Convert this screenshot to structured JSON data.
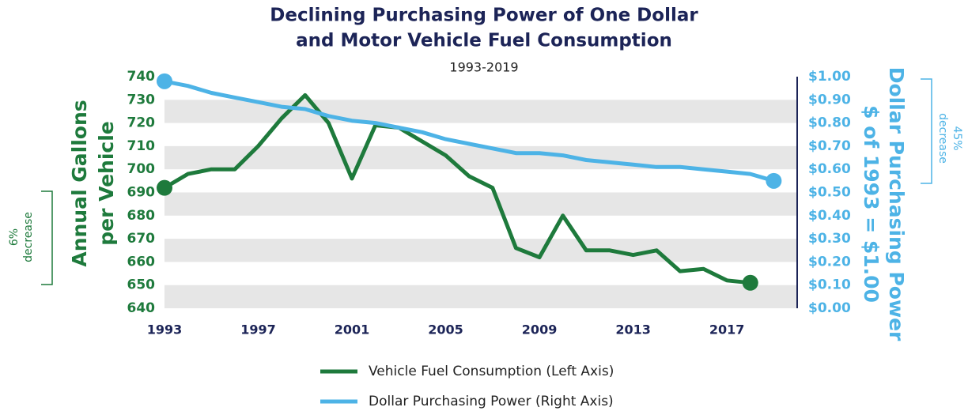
{
  "chart_data": {
    "type": "line",
    "title": [
      "Declining Purchasing Power of One Dollar",
      "and Motor Vehicle Fuel Consumption"
    ],
    "subtitle": "1993-2019",
    "y_label": [
      "Annual Gallons",
      "per Vehicle"
    ],
    "y2_label": [
      "Dollar Purchasing Power",
      "$ of 1993 = $1.00"
    ],
    "annotations": [
      [
        "6%",
        "decrease"
      ],
      [
        "45%",
        "decrease"
      ]
    ],
    "x": [
      1993,
      1994,
      1995,
      1996,
      1997,
      1998,
      1999,
      2000,
      2001,
      2002,
      2003,
      2004,
      2005,
      2006,
      2007,
      2008,
      2009,
      2010,
      2011,
      2012,
      2013,
      2014,
      2015,
      2016,
      2017,
      2018,
      2019
    ],
    "xlim": [
      1993,
      2020
    ],
    "xticks": [
      1993,
      1997,
      2001,
      2005,
      2009,
      2013,
      2017
    ],
    "ylim": [
      640,
      740
    ],
    "yticks": [
      640,
      650,
      660,
      670,
      680,
      690,
      700,
      710,
      720,
      730,
      740
    ],
    "y2lim": [
      0,
      1
    ],
    "y2ticks": [
      {
        "value": 0,
        "label": "$0.00"
      },
      {
        "value": 0.1,
        "label": "$0.10"
      },
      {
        "value": 0.2,
        "label": "$0.20"
      },
      {
        "value": 0.3,
        "label": "$0.30"
      },
      {
        "value": 0.4,
        "label": "$0.40"
      },
      {
        "value": 0.5,
        "label": "$0.50"
      },
      {
        "value": 0.6,
        "label": "$0.60"
      },
      {
        "value": 0.7,
        "label": "$0.70"
      },
      {
        "value": 0.8,
        "label": "$0.80"
      },
      {
        "value": 0.9,
        "label": "$0.90"
      },
      {
        "value": 1,
        "label": "$1.00"
      }
    ],
    "grid": true,
    "series": [
      {
        "name": "Vehicle Fuel Consumption (Left Axis)",
        "color": "#1e7a3c",
        "values": [
          692,
          698,
          700,
          700,
          710,
          722,
          732,
          720,
          696,
          719,
          718,
          712,
          706,
          697,
          692,
          666,
          662,
          680,
          665,
          665,
          663,
          665,
          656,
          657,
          652,
          651,
          null
        ]
      },
      {
        "name": "Dollar Purchasing Power (Right Axis)",
        "color": "#4db3e6",
        "axis": "y2",
        "values": [
          0.98,
          0.96,
          0.93,
          0.91,
          0.89,
          0.87,
          0.86,
          0.83,
          0.81,
          0.8,
          0.78,
          0.76,
          0.73,
          0.71,
          0.69,
          0.67,
          0.67,
          0.66,
          0.64,
          0.63,
          0.62,
          0.61,
          0.61,
          0.6,
          0.59,
          0.58,
          0.55
        ]
      }
    ]
  }
}
